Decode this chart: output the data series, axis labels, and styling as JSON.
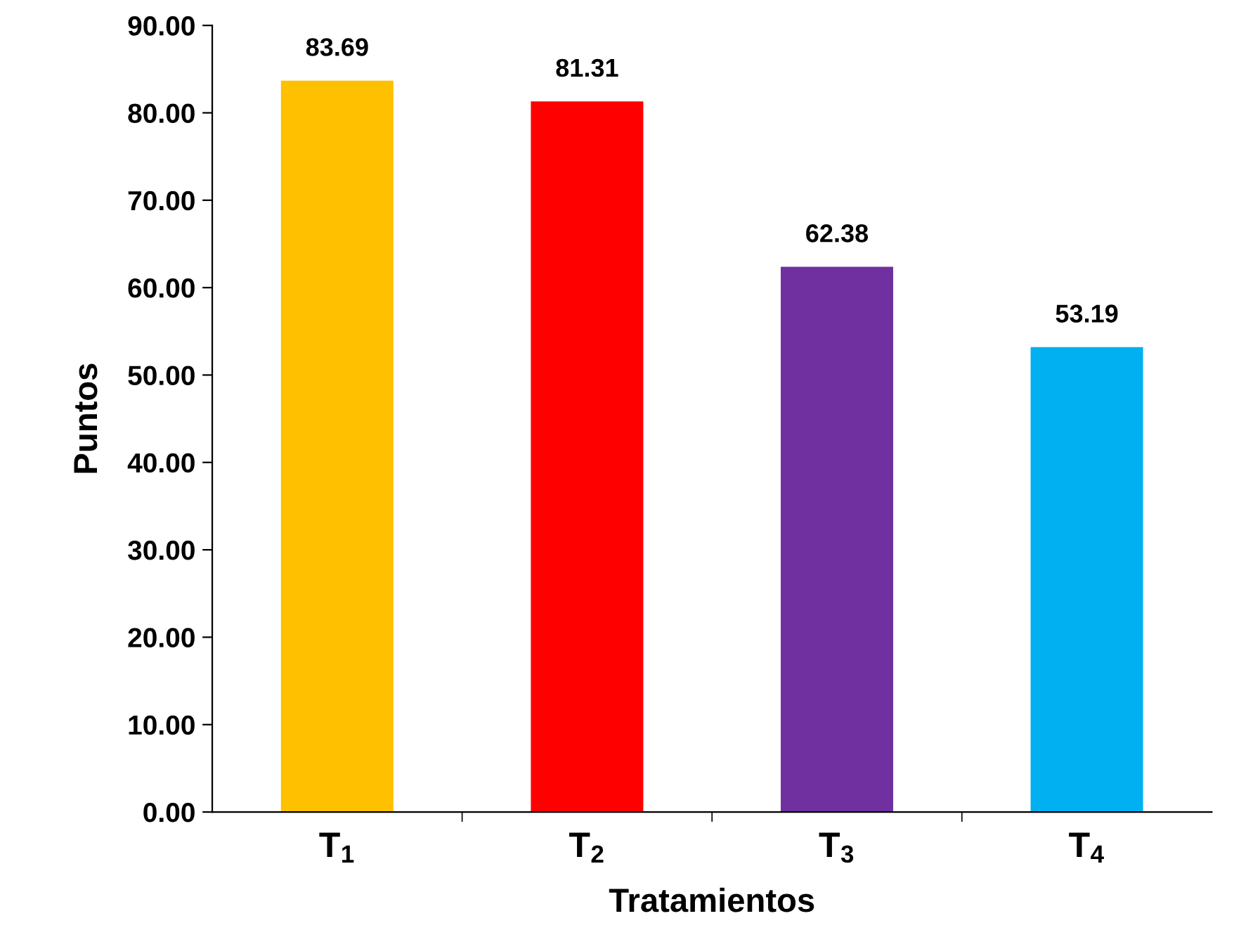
{
  "chart_data": {
    "type": "bar",
    "xlabel": "Tratamientos",
    "ylabel": "Puntos",
    "categories": [
      "T$_{1}$",
      "T$_{2}$",
      "T$_{3}$",
      "T$_{4}$"
    ],
    "values": [
      83.69,
      81.31,
      62.38,
      53.19
    ],
    "colors": [
      "#ffc000",
      "#ff0000",
      "#7030a0",
      "#00b0f0"
    ],
    "ylim": [
      0,
      90
    ],
    "yticks": [
      {
        "value": 0,
        "label": "0.00"
      },
      {
        "value": 10,
        "label": "10.00"
      },
      {
        "value": 20,
        "label": "20.00"
      },
      {
        "value": 30,
        "label": "30.00"
      },
      {
        "value": 40,
        "label": "40.00"
      },
      {
        "value": 50,
        "label": "50.00"
      },
      {
        "value": 60,
        "label": "60.00"
      },
      {
        "value": 70,
        "label": "70.00"
      },
      {
        "value": 80,
        "label": "80.00"
      },
      {
        "value": 90,
        "label": "90.00"
      }
    ],
    "data_labels": true,
    "grid": false
  }
}
